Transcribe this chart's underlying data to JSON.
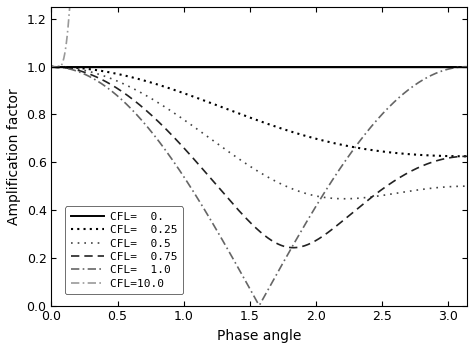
{
  "xlabel": "Phase angle",
  "ylabel": "Amplification factor",
  "xlim": [
    0,
    3.14159265
  ],
  "ylim": [
    0,
    1.25
  ],
  "yticks": [
    0,
    0.2,
    0.4,
    0.6,
    0.8,
    1.0,
    1.2
  ],
  "xticks": [
    0,
    0.5,
    1.0,
    1.5,
    2.0,
    2.5,
    3.0
  ],
  "cfl_values": [
    0.0,
    0.25,
    0.5,
    0.75,
    1.0,
    10.0
  ],
  "cfl_labels": [
    "CFL=  0.",
    "CFL=  0.25",
    "CFL=  0.5 ",
    "CFL=  0.75",
    "CFL=  1.0 ",
    "CFL=10.0 "
  ],
  "line_colors": [
    "#000000",
    "#000000",
    "#333333",
    "#555555",
    "#777777",
    "#aaaaaa"
  ],
  "line_widths": [
    1.4,
    1.2,
    1.2,
    1.2,
    1.2,
    1.2
  ],
  "n_points": 500,
  "background_color": "#ffffff"
}
